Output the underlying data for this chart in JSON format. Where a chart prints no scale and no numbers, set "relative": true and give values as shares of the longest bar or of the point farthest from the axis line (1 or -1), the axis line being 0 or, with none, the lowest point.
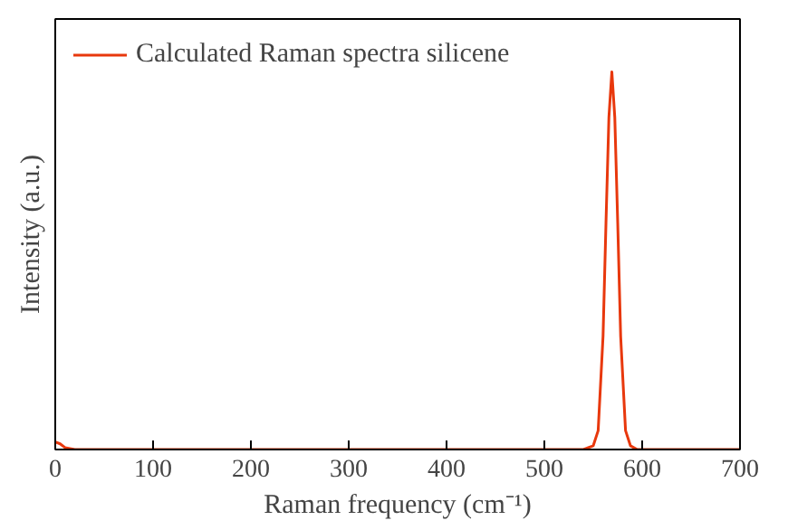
{
  "chart_data": {
    "type": "line",
    "relative": true,
    "xlabel": "Raman frequency (cm⁻¹)",
    "ylabel": "Intensity (a.u.)",
    "xlim": [
      0,
      700
    ],
    "xticks": [
      0,
      100,
      200,
      300,
      400,
      500,
      600,
      700
    ],
    "legend": "top left",
    "grid": false,
    "x": [
      0,
      5,
      10,
      20,
      540,
      550,
      555,
      560,
      563,
      566,
      569,
      572,
      575,
      578,
      583,
      588,
      595,
      700
    ],
    "series": [
      {
        "name": "Calculated Raman spectra silicene",
        "color": "#e8380d",
        "values": [
          0.02,
          0.015,
          0.005,
          0,
          0,
          0.01,
          0.05,
          0.3,
          0.6,
          0.88,
          1,
          0.88,
          0.6,
          0.3,
          0.05,
          0.01,
          0,
          0
        ]
      }
    ]
  }
}
